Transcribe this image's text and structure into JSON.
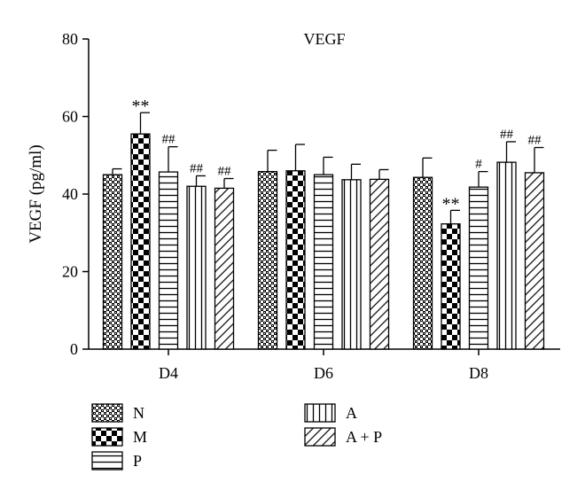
{
  "chart_data": {
    "type": "bar",
    "title": "VEGF",
    "ylabel": "VEGF (pg/ml)",
    "xlabel": "",
    "ylim": [
      0,
      80
    ],
    "yticks": [
      0,
      20,
      40,
      60,
      80
    ],
    "categories": [
      "D4",
      "D6",
      "D8"
    ],
    "grid": false,
    "legend_position": "bottom",
    "series": [
      {
        "name": "N",
        "pattern": "crosshatch",
        "values": [
          45.0,
          45.8,
          44.3
        ],
        "errors": [
          1.5,
          5.5,
          5.0
        ],
        "annotations": [
          "",
          "",
          ""
        ]
      },
      {
        "name": "M",
        "pattern": "checkerboard",
        "values": [
          55.5,
          46.0,
          32.3
        ],
        "errors": [
          5.5,
          6.8,
          3.5
        ],
        "annotations": [
          "**",
          "",
          "**"
        ]
      },
      {
        "name": "P",
        "pattern": "horizontal",
        "values": [
          45.7,
          45.0,
          41.8
        ],
        "errors": [
          6.5,
          4.5,
          4.0
        ],
        "annotations": [
          "##",
          "",
          "#"
        ]
      },
      {
        "name": "A",
        "pattern": "vertical",
        "values": [
          42.0,
          43.7,
          48.2
        ],
        "errors": [
          2.7,
          4.0,
          5.3
        ],
        "annotations": [
          "##",
          "",
          "##"
        ]
      },
      {
        "name": "A + P",
        "pattern": "diagonal",
        "values": [
          41.5,
          43.8,
          45.5
        ],
        "errors": [
          2.5,
          2.5,
          6.5
        ],
        "annotations": [
          "##",
          "",
          "##"
        ]
      }
    ]
  }
}
